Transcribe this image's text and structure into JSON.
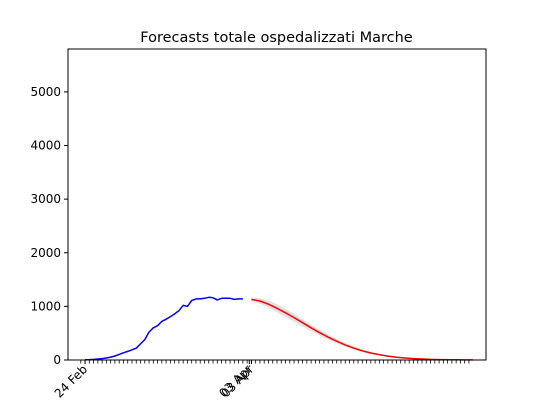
{
  "chart_data": {
    "type": "line",
    "title": "Forecasts totale ospedalizzati Marche",
    "xlabel": "",
    "ylabel": "",
    "ylim": [
      0,
      5800
    ],
    "y_ticks": [
      0,
      1000,
      2000,
      3000,
      4000,
      5000
    ],
    "x_tick_labels": [
      "24 Feb",
      "03 Apr",
      "03 Apr"
    ],
    "x_range_days": [
      -4,
      94
    ],
    "x_label_days": [
      0,
      38.5,
      39
    ],
    "grid": false,
    "series": [
      {
        "name": "",
        "color": "#0000ff",
        "x": [
          0,
          1,
          2,
          3,
          4,
          5,
          6,
          7,
          8,
          9,
          10,
          11,
          12,
          13,
          14,
          15,
          16,
          17,
          18,
          19,
          20,
          21,
          22,
          23,
          24,
          25,
          26,
          27,
          28,
          29,
          30,
          31,
          32,
          33,
          34,
          35,
          36,
          37
        ],
        "values": [
          5,
          8,
          12,
          18,
          26,
          38,
          55,
          75,
          105,
          135,
          160,
          190,
          220,
          300,
          380,
          520,
          600,
          640,
          720,
          760,
          810,
          860,
          920,
          1020,
          1000,
          1110,
          1140,
          1140,
          1150,
          1170,
          1160,
          1120,
          1150,
          1150,
          1150,
          1130,
          1140,
          1140
        ]
      },
      {
        "name": "",
        "color": "#ff0000",
        "x": [
          39,
          41,
          43,
          45,
          47,
          49,
          51,
          53,
          55,
          57,
          59,
          61,
          63,
          65,
          67,
          69,
          71,
          73,
          75,
          77,
          79,
          81,
          83,
          85,
          87,
          89,
          91
        ],
        "values": [
          1130,
          1100,
          1040,
          965,
          880,
          790,
          695,
          600,
          510,
          425,
          350,
          282,
          222,
          172,
          131,
          98,
          72,
          52,
          37,
          26,
          18,
          12,
          8,
          5,
          3,
          2,
          1
        ]
      }
    ],
    "band": {
      "color": "#e0e0e0",
      "x": [
        39,
        41,
        43,
        45,
        47,
        49,
        51,
        53,
        55,
        57,
        59,
        61,
        63,
        65,
        67,
        69,
        71,
        73,
        75,
        77,
        79,
        81,
        83,
        85,
        87,
        89,
        91
      ],
      "upper": [
        1160,
        1150,
        1110,
        1040,
        955,
        860,
        760,
        660,
        565,
        475,
        392,
        318,
        252,
        196,
        150,
        113,
        84,
        61,
        44,
        31,
        21,
        14,
        9,
        6,
        4,
        2,
        1
      ],
      "lower": [
        1100,
        1050,
        975,
        890,
        800,
        715,
        625,
        540,
        455,
        378,
        310,
        248,
        194,
        148,
        112,
        84,
        61,
        44,
        31,
        22,
        15,
        10,
        7,
        4,
        2,
        1,
        1
      ]
    }
  }
}
